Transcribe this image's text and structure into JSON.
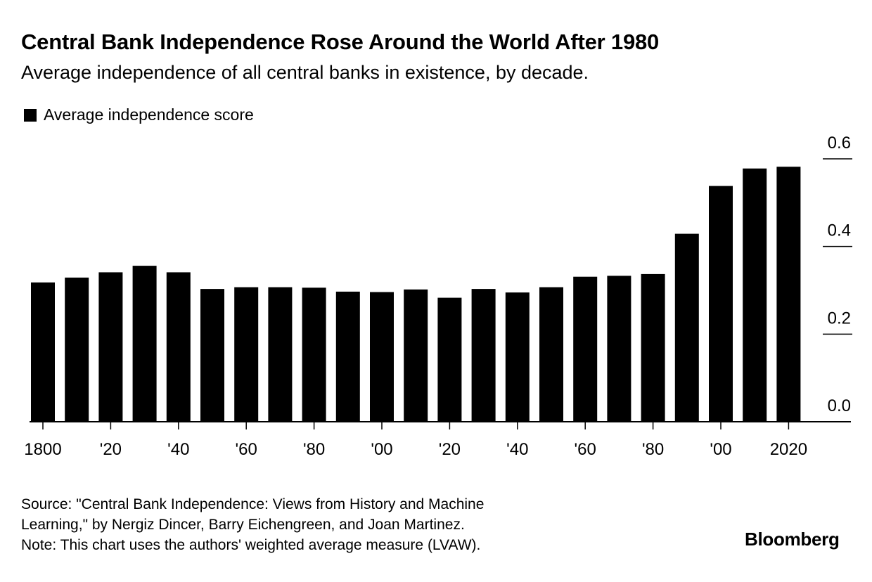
{
  "title": "Central Bank Independence Rose Around the World After 1980",
  "subtitle": "Average independence of all central banks in existence, by decade.",
  "legend": {
    "label": "Average independence score",
    "color": "#000000"
  },
  "footer": {
    "source_line1": "Source: \"Central Bank Independence: Views from History and Machine",
    "source_line2": "Learning,\" by Nergiz Dincer, Barry Eichengreen, and Joan Martinez.",
    "note": "Note: This chart uses the authors' weighted average measure (LVAW)."
  },
  "brand": "Bloomberg",
  "chart_data": {
    "type": "bar",
    "x": [
      1800,
      1810,
      1820,
      1830,
      1840,
      1850,
      1860,
      1870,
      1880,
      1890,
      1900,
      1910,
      1920,
      1930,
      1940,
      1950,
      1960,
      1970,
      1980,
      1990,
      2000,
      2010,
      2020
    ],
    "values": [
      0.318,
      0.329,
      0.341,
      0.356,
      0.341,
      0.303,
      0.307,
      0.307,
      0.306,
      0.297,
      0.296,
      0.302,
      0.283,
      0.303,
      0.295,
      0.307,
      0.331,
      0.333,
      0.337,
      0.429,
      0.538,
      0.578,
      0.582
    ],
    "series_name": "Average independence score",
    "ylim": [
      0.0,
      0.6
    ],
    "y_ticks": [
      {
        "value": 0.0,
        "label": "0.0"
      },
      {
        "value": 0.2,
        "label": "0.2"
      },
      {
        "value": 0.4,
        "label": "0.4"
      },
      {
        "value": 0.6,
        "label": "0.6"
      }
    ],
    "x_ticks": [
      {
        "value": 1800,
        "label": "1800"
      },
      {
        "value": 1820,
        "label": "'20"
      },
      {
        "value": 1840,
        "label": "'40"
      },
      {
        "value": 1860,
        "label": "'60"
      },
      {
        "value": 1880,
        "label": "'80"
      },
      {
        "value": 1900,
        "label": "'00"
      },
      {
        "value": 1920,
        "label": "'20"
      },
      {
        "value": 1940,
        "label": "'40"
      },
      {
        "value": 1960,
        "label": "'60"
      },
      {
        "value": 1980,
        "label": "'80"
      },
      {
        "value": 2000,
        "label": "'00"
      },
      {
        "value": 2020,
        "label": "2020"
      }
    ],
    "bar_color": "#000000",
    "grid": false,
    "y_axis_position": "right",
    "legend_position": "top-left"
  }
}
